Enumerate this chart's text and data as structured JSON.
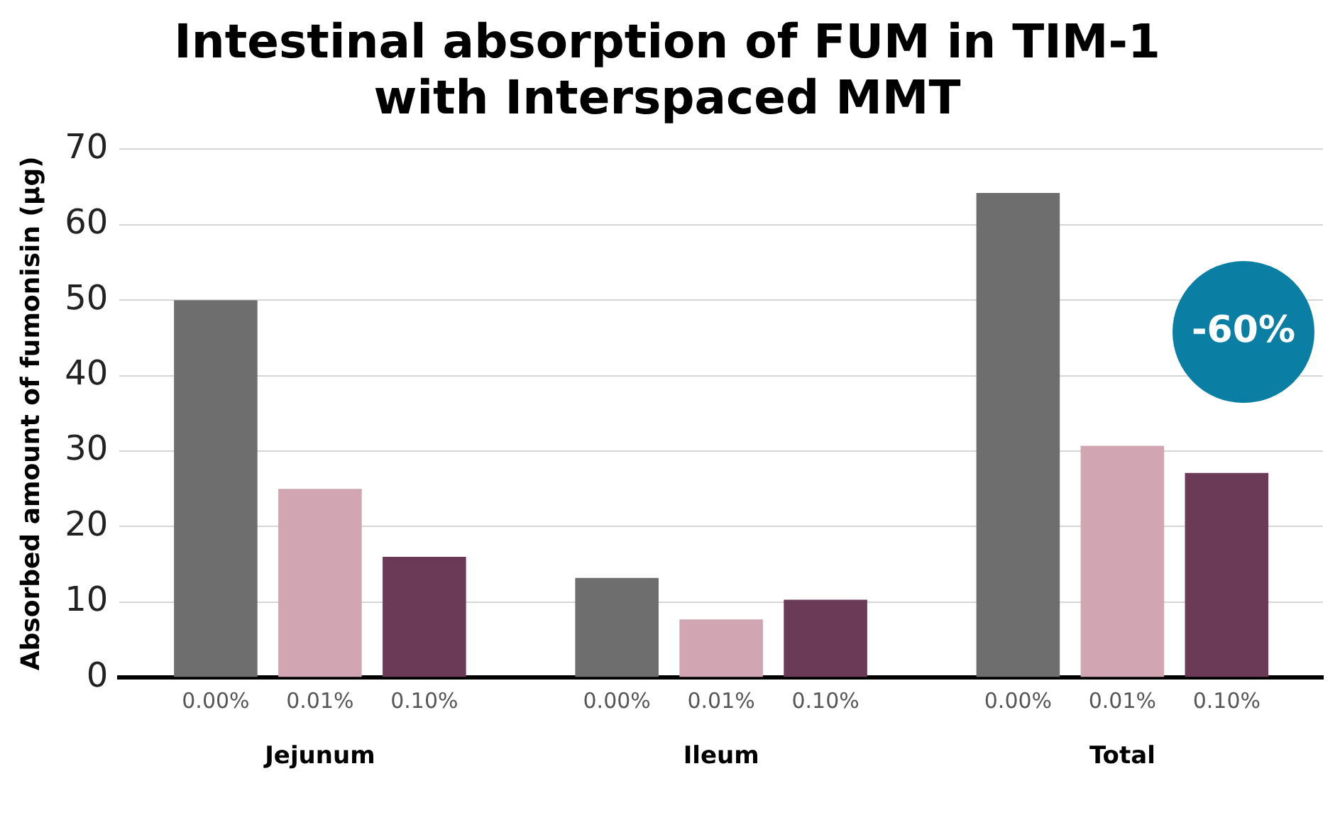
{
  "chart_data": {
    "type": "bar",
    "title": "Intestinal absorption of FUM in TIM-1\nwith Interspaced MMT",
    "ylabel": "Absorbed amount of fumonisin (µg)",
    "categories": [
      "Jejunum",
      "Ileum",
      "Total"
    ],
    "series": [
      {
        "name": "0.00%",
        "color": "#6e6e6e",
        "values": [
          50,
          13.2,
          64.2
        ]
      },
      {
        "name": "0.01%",
        "color": "#d1a5b1",
        "values": [
          25,
          7.7,
          30.7
        ]
      },
      {
        "name": "0.10%",
        "color": "#6b3a56",
        "values": [
          16,
          10.3,
          27.1
        ]
      }
    ],
    "ylim": [
      0,
      70
    ],
    "yticks": [
      0,
      10,
      20,
      30,
      40,
      50,
      60,
      70
    ],
    "grid": "y",
    "legend": false,
    "annotations": [
      "-60%"
    ]
  }
}
